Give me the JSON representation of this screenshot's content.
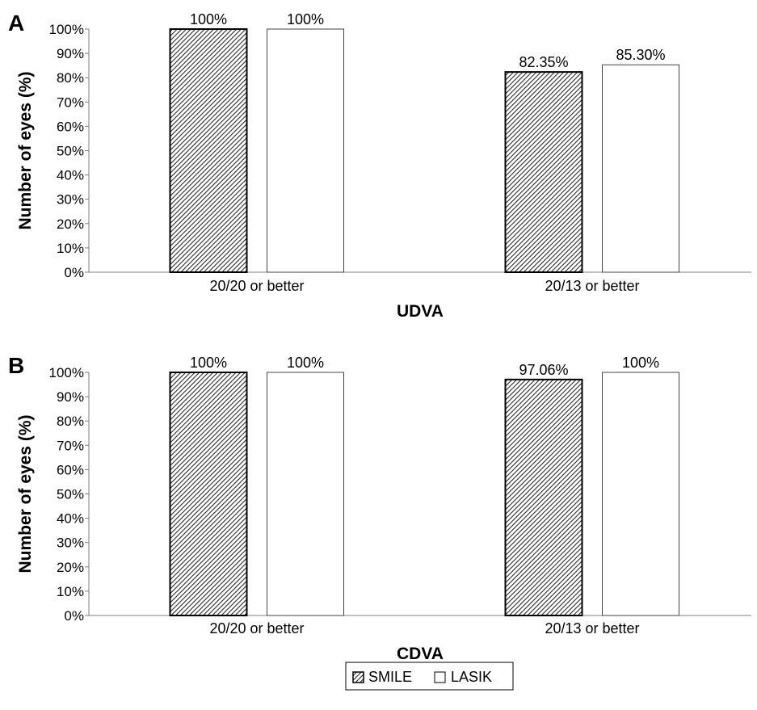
{
  "chart_data": [
    {
      "type": "bar",
      "panel_label": "A",
      "categories": [
        "20/20 or better",
        "20/13 or better"
      ],
      "series": [
        {
          "name": "SMILE",
          "values": [
            100,
            82.35
          ],
          "labels": [
            "100%",
            "82.35%"
          ]
        },
        {
          "name": "LASIK",
          "values": [
            100,
            85.3
          ],
          "labels": [
            "100%",
            "85.30%"
          ]
        }
      ],
      "xlabel": "UDVA",
      "ylabel": "Number of eyes (%)",
      "ylim": [
        0,
        100
      ],
      "yticks": [
        "0%",
        "10%",
        "20%",
        "30%",
        "40%",
        "50%",
        "60%",
        "70%",
        "80%",
        "90%",
        "100%"
      ],
      "grid": false
    },
    {
      "type": "bar",
      "panel_label": "B",
      "categories": [
        "20/20 or better",
        "20/13 or better"
      ],
      "series": [
        {
          "name": "SMILE",
          "values": [
            100,
            97.06
          ],
          "labels": [
            "100%",
            "97.06%"
          ]
        },
        {
          "name": "LASIK",
          "values": [
            100,
            100
          ],
          "labels": [
            "100%",
            "100%"
          ]
        }
      ],
      "xlabel": "CDVA",
      "ylabel": "Number of eyes (%)",
      "ylim": [
        0,
        100
      ],
      "yticks": [
        "0%",
        "10%",
        "20%",
        "30%",
        "40%",
        "50%",
        "60%",
        "70%",
        "80%",
        "90%",
        "100%"
      ],
      "grid": false
    }
  ],
  "legend": {
    "placement": "bottom-center",
    "items": [
      {
        "label": "SMILE",
        "pattern": "diagonal-hatch"
      },
      {
        "label": "LASIK",
        "pattern": "white"
      }
    ]
  },
  "colors": {
    "smile_fill": "#9a9a9a",
    "smile_stroke": "#000000",
    "lasik_fill": "#ffffff",
    "lasik_stroke": "#444444",
    "axis": "#7f7f7f"
  }
}
